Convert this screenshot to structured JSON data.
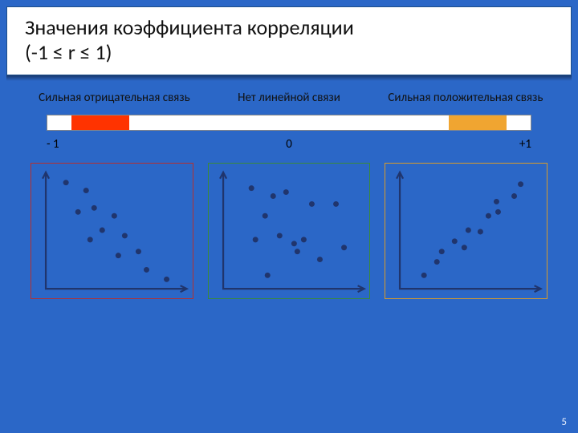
{
  "slide": {
    "background_color": "#2b67c7",
    "outer_gradient_top": "#2a5fb5",
    "outer_gradient_bot": "#1b4d9e",
    "page_number": "5"
  },
  "title": {
    "text_line1": "Значения коэффициента корреляции",
    "text_line2": "(-1 ≤ r ≤ 1)",
    "border_color": "#1d4e89",
    "font_color": "#111111",
    "font_size_pt": 20
  },
  "labels": {
    "left": "Сильная отрицательная связь",
    "mid": "Нет линейной связи",
    "right": "Сильная положительная связь",
    "font_size_pt": 14,
    "color_left": "#111111",
    "color_mid": "#111111",
    "color_right": "#111111"
  },
  "bar": {
    "border_color": "#888888",
    "segments": [
      {
        "width_pct": 5,
        "color": "#ffffff"
      },
      {
        "width_pct": 12,
        "color": "#ff3300"
      },
      {
        "width_pct": 33,
        "color": "#ffffff"
      },
      {
        "width_pct": 33,
        "color": "#ffffff"
      },
      {
        "width_pct": 12,
        "color": "#f0a531"
      },
      {
        "width_pct": 5,
        "color": "#ffffff"
      }
    ],
    "axis": {
      "ticks": [
        {
          "pos_pct": 0,
          "label": "- 1"
        },
        {
          "pos_pct": 50,
          "label": "0"
        },
        {
          "pos_pct": 100,
          "label": "+1"
        }
      ]
    }
  },
  "scatter_common": {
    "viewbox_w": 200,
    "viewbox_h": 170,
    "axis_color": "#20356d",
    "axis_width": 2.2,
    "border_width": 1.2,
    "marker_radius": 3.5,
    "marker_color": "#20356d",
    "x_padding": 18,
    "y_padding": 12
  },
  "plots": [
    {
      "border_color": "#b53030",
      "points": [
        [
          25,
          18
        ],
        [
          50,
          28
        ],
        [
          60,
          50
        ],
        [
          40,
          55
        ],
        [
          85,
          60
        ],
        [
          70,
          78
        ],
        [
          55,
          90
        ],
        [
          98,
          85
        ],
        [
          90,
          110
        ],
        [
          115,
          105
        ],
        [
          125,
          128
        ],
        [
          150,
          140
        ]
      ]
    },
    {
      "border_color": "#3a8a3a",
      "points": [
        [
          35,
          25
        ],
        [
          62,
          35
        ],
        [
          78,
          30
        ],
        [
          52,
          60
        ],
        [
          110,
          45
        ],
        [
          140,
          45
        ],
        [
          40,
          90
        ],
        [
          70,
          85
        ],
        [
          88,
          95
        ],
        [
          100,
          90
        ],
        [
          92,
          105
        ],
        [
          120,
          115
        ],
        [
          150,
          100
        ],
        [
          55,
          135
        ]
      ]
    },
    {
      "border_color": "#d89b2a",
      "points": [
        [
          30,
          135
        ],
        [
          46,
          118
        ],
        [
          52,
          105
        ],
        [
          68,
          92
        ],
        [
          80,
          100
        ],
        [
          85,
          78
        ],
        [
          100,
          80
        ],
        [
          110,
          60
        ],
        [
          122,
          55
        ],
        [
          120,
          42
        ],
        [
          142,
          35
        ],
        [
          150,
          20
        ]
      ]
    }
  ]
}
